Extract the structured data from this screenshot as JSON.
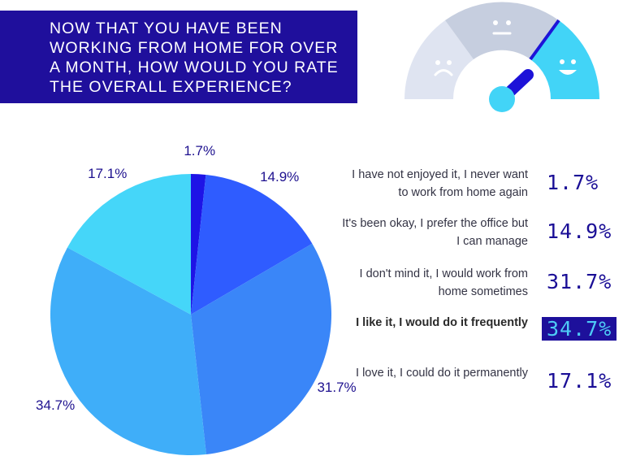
{
  "title": "NOW THAT YOU HAVE BEEN WORKING FROM HOME FOR OVER A MONTH, HOW WOULD YOU RATE THE OVERALL EXPERIENCE?",
  "colors": {
    "title_bg": "#1f0f9c",
    "label_text": "#1e118f",
    "highlight_bg": "#1d109b",
    "highlight_text": "#4ecbf6"
  },
  "gauge": {
    "icons": [
      "sad-face-icon",
      "neutral-face-icon",
      "happy-face-icon"
    ],
    "needle_level": 0.78
  },
  "chart_data": {
    "type": "pie",
    "slices": [
      {
        "label": "I have not enjoyed it, I never want to work from home again",
        "value": 1.7,
        "display": "1.7%",
        "color": "#1e14e6"
      },
      {
        "label": "It's been okay, I prefer the office but I can manage",
        "value": 14.9,
        "display": "14.9%",
        "color": "#2f5cff"
      },
      {
        "label": "I don't mind it, I would work from home sometimes",
        "value": 31.7,
        "display": "31.7%",
        "color": "#3a86f8"
      },
      {
        "label": "I like it, I would do it frequently",
        "value": 34.7,
        "display": "34.7%",
        "color": "#3faef9",
        "highlighted": true
      },
      {
        "label": "I love it, I could do it permanently",
        "value": 17.1,
        "display": "17.1%",
        "color": "#45d6f9"
      }
    ]
  }
}
